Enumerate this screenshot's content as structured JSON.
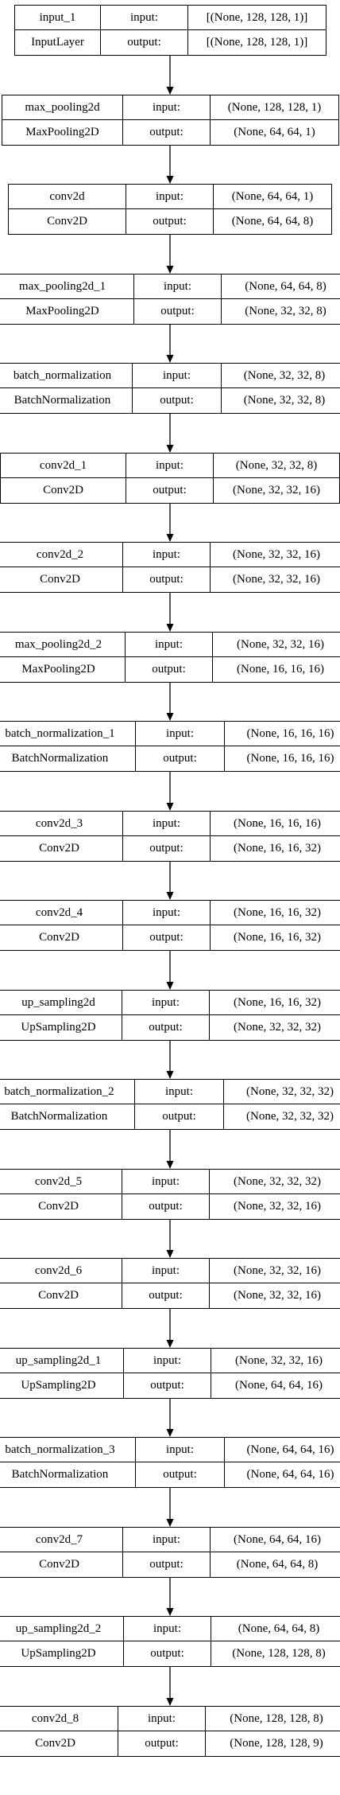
{
  "diagram": {
    "input_label": "input:",
    "output_label": "output:",
    "layers": [
      {
        "name": "input_1",
        "type": "InputLayer",
        "input": "[(None, 128, 128, 1)]",
        "output": "[(None, 128, 128, 1)]"
      },
      {
        "name": "max_pooling2d",
        "type": "MaxPooling2D",
        "input": "(None, 128, 128, 1)",
        "output": "(None, 64, 64, 1)"
      },
      {
        "name": "conv2d",
        "type": "Conv2D",
        "input": "(None, 64, 64, 1)",
        "output": "(None, 64, 64, 8)"
      },
      {
        "name": "max_pooling2d_1",
        "type": "MaxPooling2D",
        "input": "(None, 64, 64, 8)",
        "output": "(None, 32, 32, 8)"
      },
      {
        "name": "batch_normalization",
        "type": "BatchNormalization",
        "input": "(None, 32, 32, 8)",
        "output": "(None, 32, 32, 8)"
      },
      {
        "name": "conv2d_1",
        "type": "Conv2D",
        "input": "(None, 32, 32, 8)",
        "output": "(None, 32, 32, 16)"
      },
      {
        "name": "conv2d_2",
        "type": "Conv2D",
        "input": "(None, 32, 32, 16)",
        "output": "(None, 32, 32, 16)"
      },
      {
        "name": "max_pooling2d_2",
        "type": "MaxPooling2D",
        "input": "(None, 32, 32, 16)",
        "output": "(None, 16, 16, 16)"
      },
      {
        "name": "batch_normalization_1",
        "type": "BatchNormalization",
        "input": "(None, 16, 16, 16)",
        "output": "(None, 16, 16, 16)"
      },
      {
        "name": "conv2d_3",
        "type": "Conv2D",
        "input": "(None, 16, 16, 16)",
        "output": "(None, 16, 16, 32)"
      },
      {
        "name": "conv2d_4",
        "type": "Conv2D",
        "input": "(None, 16, 16, 32)",
        "output": "(None, 16, 16, 32)"
      },
      {
        "name": "up_sampling2d",
        "type": "UpSampling2D",
        "input": "(None, 16, 16, 32)",
        "output": "(None, 32, 32, 32)"
      },
      {
        "name": "batch_normalization_2",
        "type": "BatchNormalization",
        "input": "(None, 32, 32, 32)",
        "output": "(None, 32, 32, 32)"
      },
      {
        "name": "conv2d_5",
        "type": "Conv2D",
        "input": "(None, 32, 32, 32)",
        "output": "(None, 32, 32, 16)"
      },
      {
        "name": "conv2d_6",
        "type": "Conv2D",
        "input": "(None, 32, 32, 16)",
        "output": "(None, 32, 32, 16)"
      },
      {
        "name": "up_sampling2d_1",
        "type": "UpSampling2D",
        "input": "(None, 32, 32, 16)",
        "output": "(None, 64, 64, 16)"
      },
      {
        "name": "batch_normalization_3",
        "type": "BatchNormalization",
        "input": "(None, 64, 64, 16)",
        "output": "(None, 64, 64, 16)"
      },
      {
        "name": "conv2d_7",
        "type": "Conv2D",
        "input": "(None, 64, 64, 16)",
        "output": "(None, 64, 64, 8)"
      },
      {
        "name": "up_sampling2d_2",
        "type": "UpSampling2D",
        "input": "(None, 64, 64, 8)",
        "output": "(None, 128, 128, 8)"
      },
      {
        "name": "conv2d_8",
        "type": "Conv2D",
        "input": "(None, 128, 128, 8)",
        "output": "(None, 128, 128, 9)"
      }
    ]
  }
}
